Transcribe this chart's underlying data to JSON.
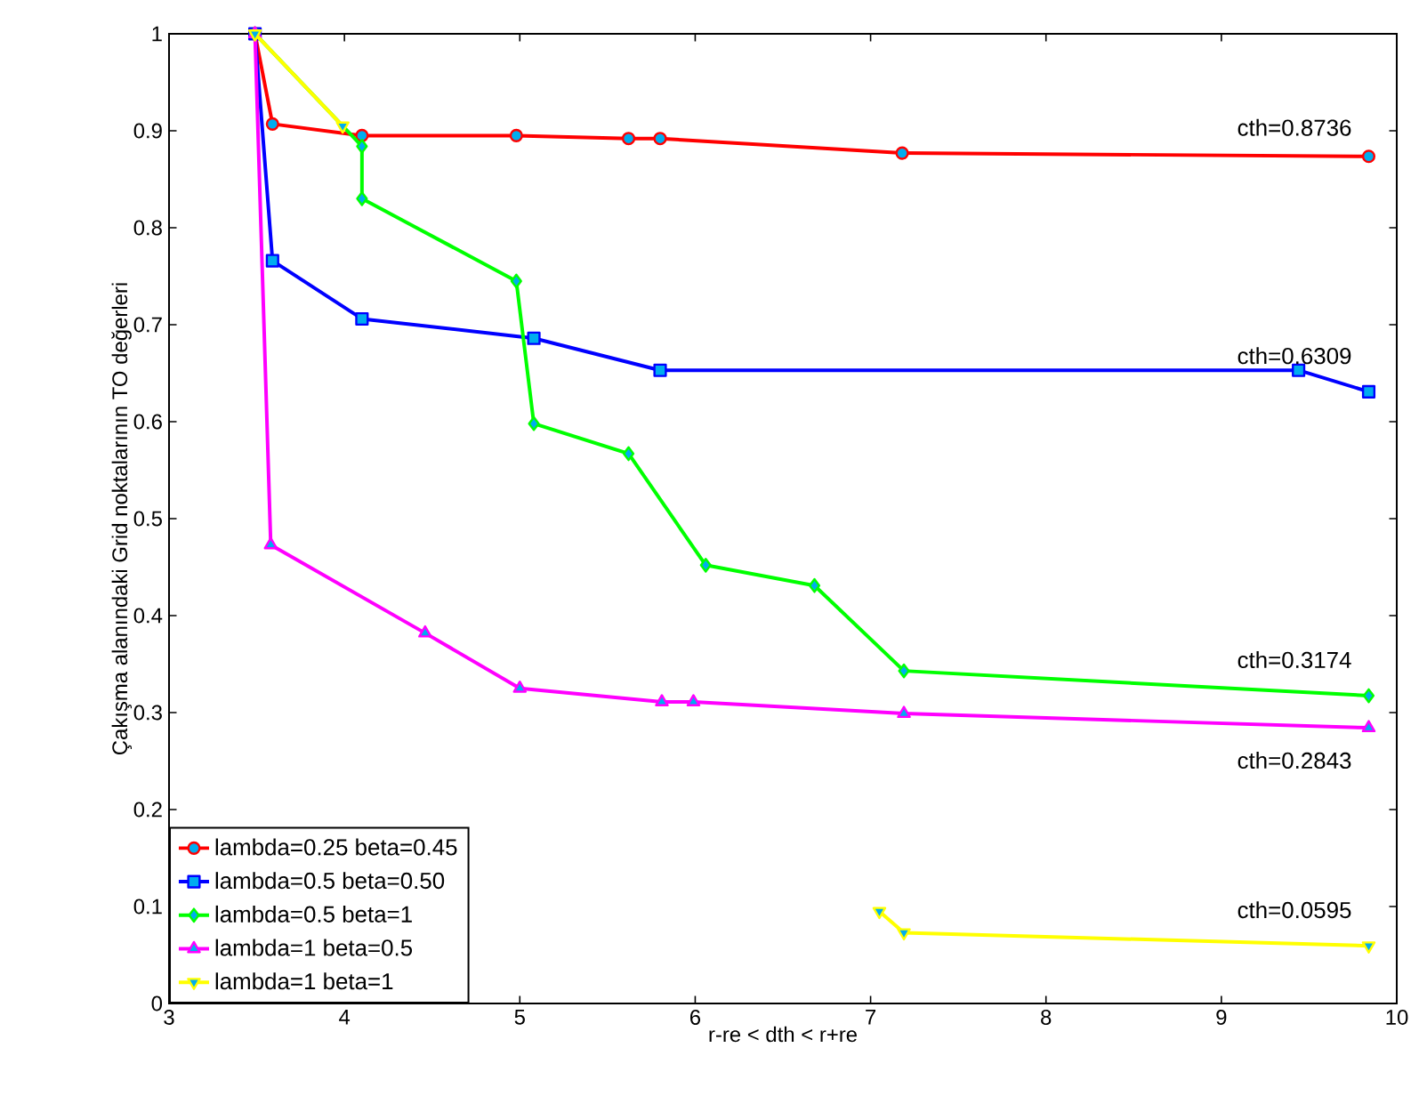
{
  "chart_data": {
    "type": "line",
    "xlabel": "r-re < dth < r+re",
    "ylabel": "Çakışma alanındaki Grid noktalarının TO değerleri",
    "xlim": [
      3,
      10
    ],
    "ylim": [
      0,
      1
    ],
    "xticks": [
      3,
      4,
      5,
      6,
      7,
      8,
      9,
      10
    ],
    "yticks": [
      0,
      0.1,
      0.2,
      0.3,
      0.4,
      0.5,
      0.6,
      0.7,
      0.8,
      0.9,
      1
    ],
    "grid": false,
    "legend": "bottom left",
    "series": [
      {
        "name": "lambda=0.25 beta=0.45",
        "color": "#ff0000",
        "marker": "circle",
        "x": [
          3.49,
          3.59,
          4.1,
          4.98,
          5.62,
          5.8,
          7.18,
          9.84
        ],
        "values": [
          1,
          0.907,
          0.895,
          0.895,
          0.892,
          0.892,
          0.877,
          0.8736
        ]
      },
      {
        "name": "lambda=0.5 beta=0.50",
        "color": "#0000ff",
        "marker": "square",
        "x": [
          3.49,
          3.59,
          4.1,
          5.08,
          5.8,
          9.44,
          9.84
        ],
        "values": [
          1,
          0.766,
          0.706,
          0.686,
          0.653,
          0.653,
          0.6309
        ]
      },
      {
        "name": "lambda=0.5 beta=1",
        "color": "#00ff00",
        "marker": "diamond",
        "x": [
          3.49,
          4.1,
          4.1,
          4.98,
          5.08,
          5.62,
          6.06,
          6.68,
          7.19,
          9.84
        ],
        "values": [
          1,
          0.884,
          0.83,
          0.745,
          0.598,
          0.567,
          0.452,
          0.431,
          0.343,
          0.3174
        ]
      },
      {
        "name": "lambda=1 beta=0.5",
        "color": "#ff00ff",
        "marker": "triangle",
        "x": [
          3.49,
          3.58,
          4.46,
          5.0,
          5.81,
          5.99,
          7.19,
          9.84
        ],
        "values": [
          1,
          0.473,
          0.382,
          0.325,
          0.311,
          0.311,
          0.299,
          0.2843
        ]
      },
      {
        "name": "lambda=1 beta=1",
        "color": "#ffff00",
        "marker": "triangle-down",
        "x": [
          3.49,
          3.99,
          4.12,
          7.05,
          7.19,
          9.84
        ],
        "values": [
          1,
          0.905,
          null,
          0.095,
          0.073,
          0.0595
        ]
      }
    ],
    "annotations": [
      "cth=0.8736",
      "cth=0.6309",
      "cth=0.3174",
      "cth=0.2843",
      "cth=0.0595"
    ]
  }
}
